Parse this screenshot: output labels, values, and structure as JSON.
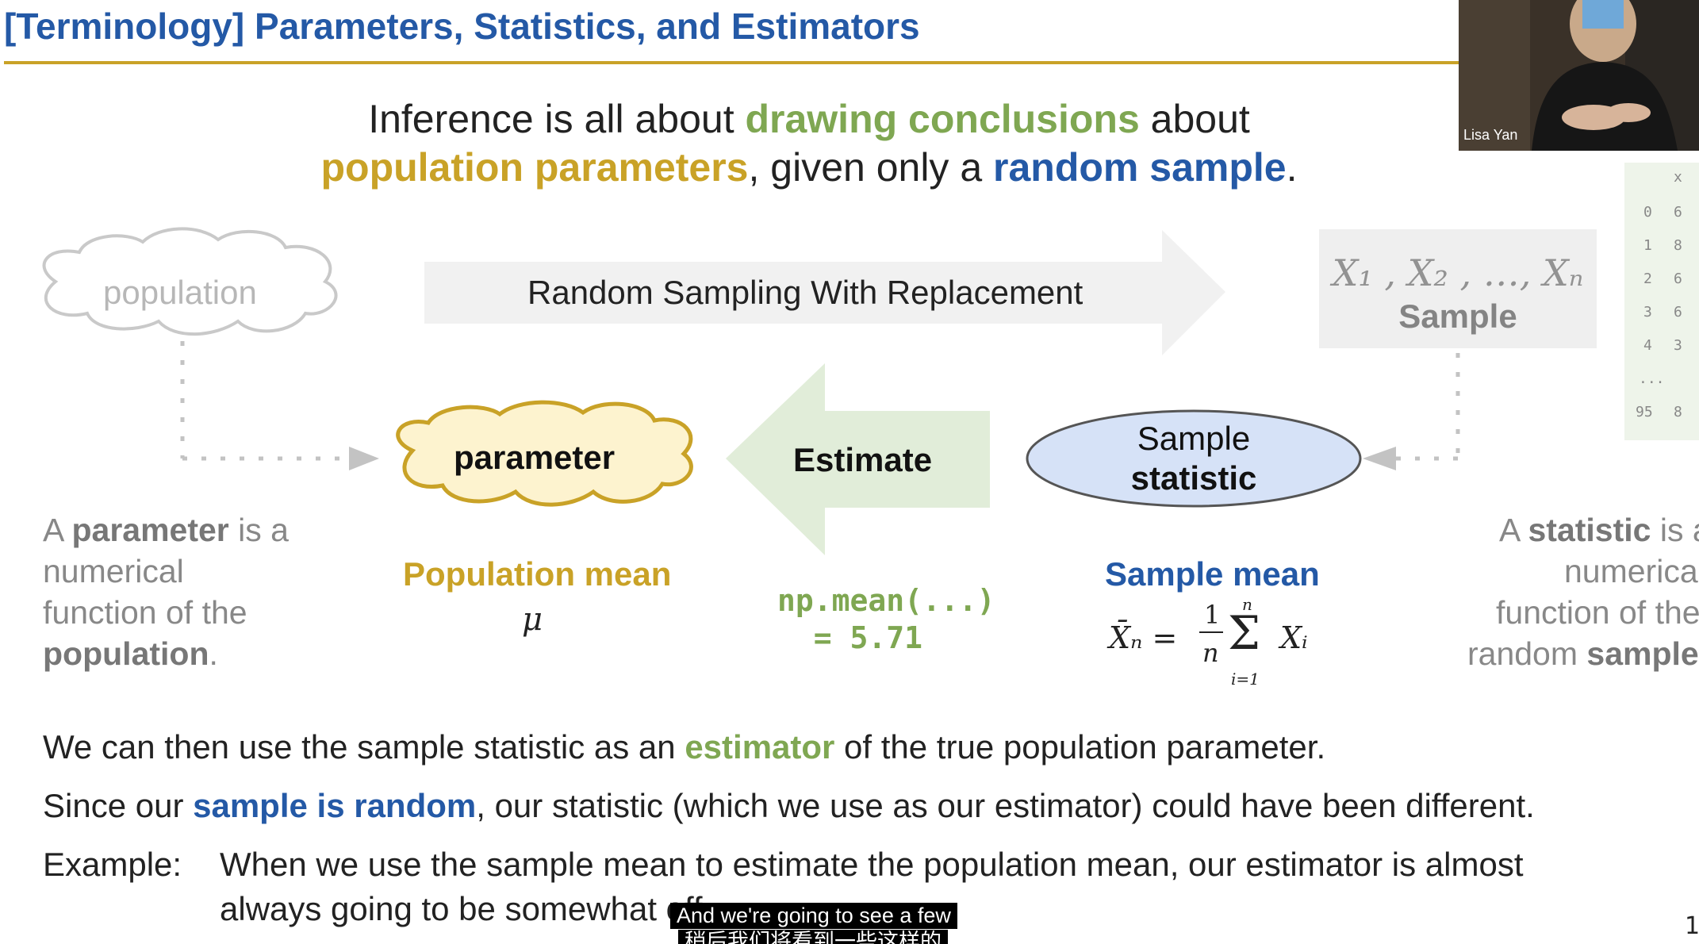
{
  "slide": {
    "title": "[Terminology] Parameters, Statistics, and Estimators",
    "intro": {
      "p1": "Inference is all about ",
      "g1": "drawing conclusions",
      "p2": " about",
      "y1": "population parameters",
      "p3": ", given only a ",
      "b1": "random sample",
      "p4": "."
    },
    "diagram": {
      "population_label": "population",
      "sampling_arrow_label": "Random Sampling With Replacement",
      "sample_vars": "X₁ , X₂ , …, Xₙ",
      "sample_label": "Sample",
      "parameter_label": "parameter",
      "estimate_label": "Estimate",
      "statistic_line1": "Sample",
      "statistic_line2": "statistic"
    },
    "side_table": {
      "header": "x",
      "rows": [
        [
          "0",
          "6"
        ],
        [
          "1",
          "8"
        ],
        [
          "2",
          "6"
        ],
        [
          "3",
          "6"
        ],
        [
          "4",
          "3"
        ],
        [
          "...",
          "..."
        ],
        [
          "95",
          "8"
        ]
      ]
    },
    "left_definition": {
      "a": "A ",
      "parameter": "parameter",
      "is_a": " is a",
      "numerical": "numerical",
      "function_of": "function of the",
      "population": "population",
      "dot": "."
    },
    "right_definition": {
      "a": "A ",
      "statistic": "statistic",
      "is_a": " is a",
      "numerical": "numerical",
      "function_of": "function of the",
      "random": "random ",
      "sample": "sample"
    },
    "population_mean_label": "Population mean",
    "mu_symbol": "μ",
    "code_line1": "np.mean(...)",
    "code_line2": "  = 5.71",
    "sample_mean_label": "Sample mean",
    "formula": {
      "lhs": "X̄ₙ = ",
      "numerator": "1",
      "denominator": "n",
      "sum_top": "n",
      "sum_symbol": "Σ",
      "sum_bottom": "i=1",
      "term": "Xᵢ"
    },
    "body": {
      "line1_a": "We can then use the sample statistic as an ",
      "line1_g": "estimator",
      "line1_b": " of the true population parameter.",
      "line2_a": "Since our ",
      "line2_b": "sample is random",
      "line2_c": ", our statistic (which we use as our estimator) could have been different.",
      "example_label": "Example:",
      "example_line1": "When we use the sample mean to estimate the population mean, our estimator is almost",
      "example_line2": "always going to be somewhat off."
    },
    "page_number": "1"
  },
  "webcam": {
    "name": "Lisa Yan"
  },
  "subtitles": {
    "english": "And we're going to see a few",
    "chinese": "稍后我们将看到一些这样的"
  },
  "colors": {
    "title_blue": "#2459a6",
    "gold": "#c9a227",
    "green": "#7fa752"
  }
}
